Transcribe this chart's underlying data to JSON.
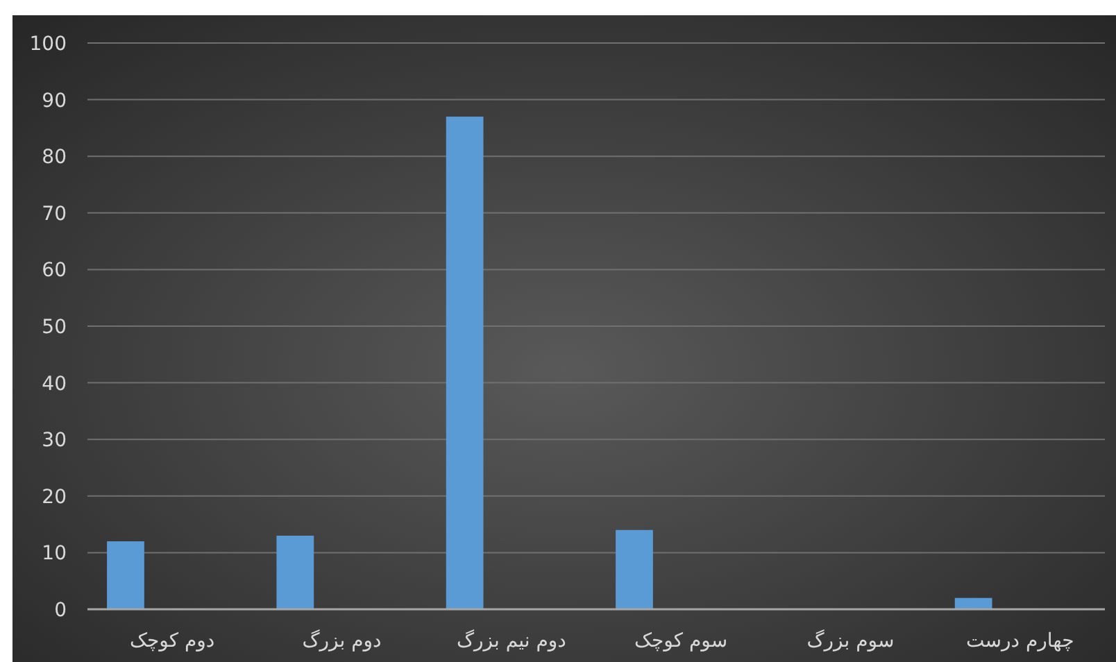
{
  "chart_data": {
    "type": "bar",
    "categories": [
      "دوم کوچک",
      "دوم بزرگ",
      "دوم نیم بزرگ",
      "سوم کوچک",
      "سوم بزرگ",
      "چهارم درست"
    ],
    "values": [
      12,
      13,
      87,
      14,
      0,
      2
    ],
    "color": "#5b9bd5",
    "ylim": [
      0,
      100
    ],
    "yticks": [
      0,
      10,
      20,
      30,
      40,
      50,
      60,
      70,
      80,
      90,
      100
    ],
    "grid": "y"
  }
}
